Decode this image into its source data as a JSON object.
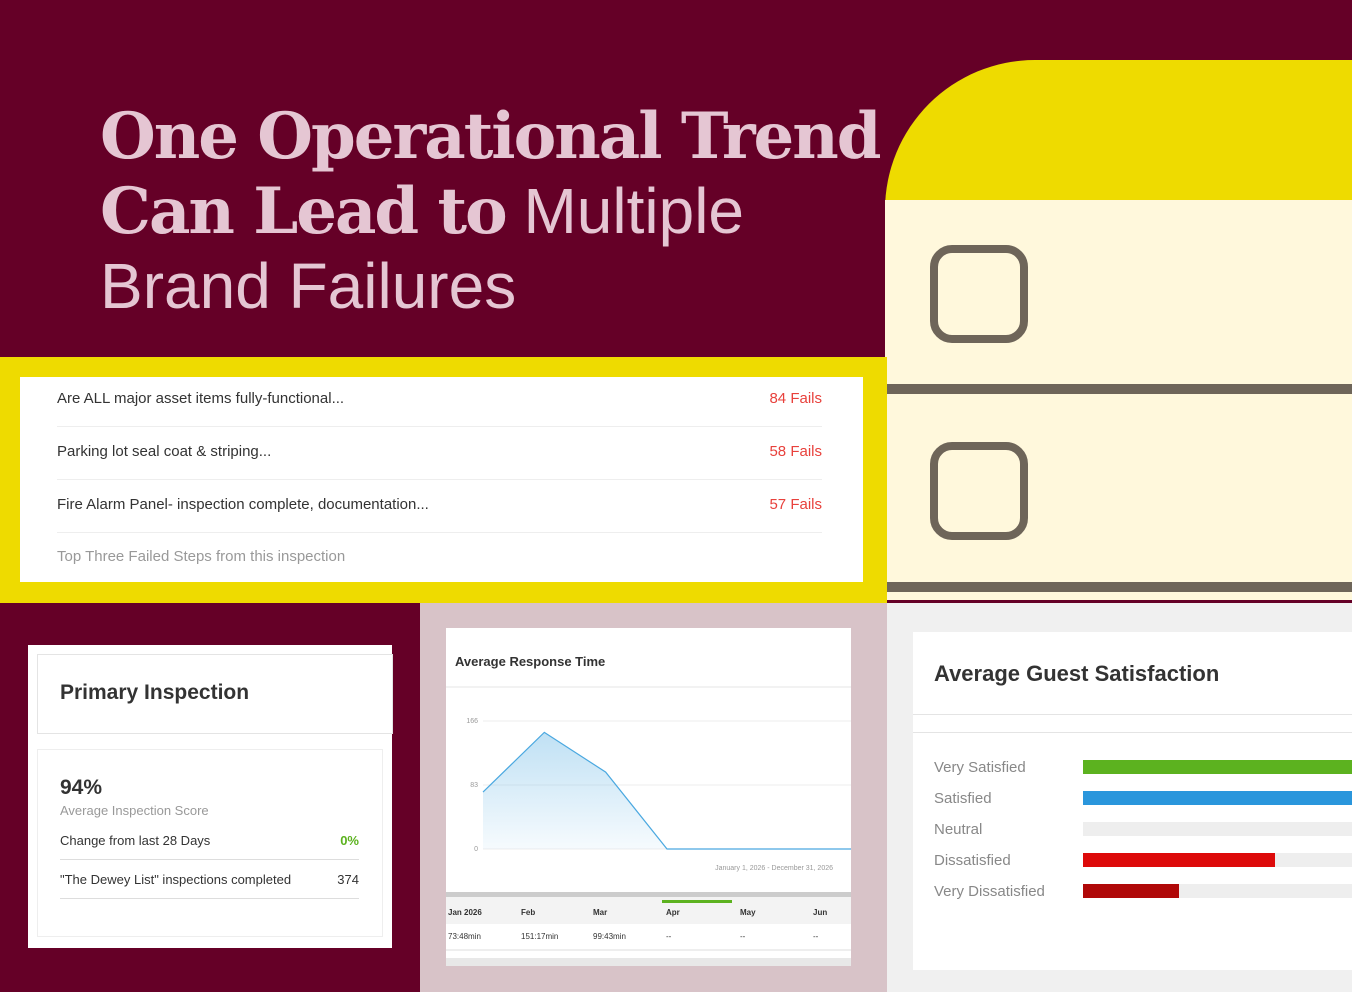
{
  "header": {
    "title_bold_1": "One Operational Trend",
    "title_bold_2": "Can Lead to",
    "title_light_1": "Multiple",
    "title_light_2": "Brand Failures"
  },
  "failed_steps": {
    "rows": [
      {
        "label": "Are ALL major asset items fully-functional...",
        "fails": "84 Fails"
      },
      {
        "label": "Parking lot seal coat & striping...",
        "fails": "58 Fails"
      },
      {
        "label": "Fire Alarm Panel- inspection complete, documentation...",
        "fails": "57 Fails"
      }
    ],
    "caption": "Top Three Failed Steps from this inspection"
  },
  "primary_inspection": {
    "title": "Primary Inspection",
    "score": "94%",
    "score_label": "Average Inspection Score",
    "change_label": "Change from last 28 Days",
    "change_value": "0%",
    "completed_label": "\"The Dewey List\" inspections completed",
    "completed_value": 374
  },
  "response_table": {
    "columns": [
      "Jan 2026",
      "Feb",
      "Mar",
      "Apr",
      "May",
      "Jun"
    ],
    "row": [
      "73:48min",
      "151:17min",
      "99:43min",
      "--",
      "--",
      "--"
    ]
  },
  "chart_data": [
    {
      "type": "line",
      "title": "Average Response Time",
      "subtitle": "January 1, 2026 - December 31, 2026",
      "values": [
        73.8,
        151.28,
        99.72,
        0,
        0,
        0,
        0
      ],
      "color": "#4aa8e0",
      "ylim": [
        0,
        166
      ],
      "yticks": [
        0,
        83,
        166
      ],
      "grid": true
    },
    {
      "type": "hbar",
      "title": "Average Guest Satisfaction",
      "categories": [
        "Very Satisfied",
        "Satisfied",
        "Neutral",
        "Dissatisfied",
        "Very Dissatisfied"
      ],
      "values": [
        100,
        100,
        0,
        64,
        32
      ],
      "colors": [
        "#5cb21f",
        "#2a96dc",
        "#e0e0e0",
        "#dd0a0a",
        "#b00808"
      ],
      "xlim": [
        0,
        100
      ]
    }
  ]
}
